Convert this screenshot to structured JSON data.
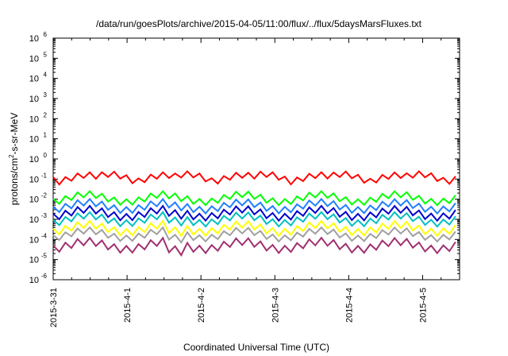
{
  "chart_data": {
    "type": "line",
    "title": "/data/run/goesPlots/archive/2015-04-05/11:00/flux/../flux/5daysMarsFluxes.txt",
    "xlabel": "Coordinated Universal Time (UTC)",
    "ylabel": {
      "pre": "protons/cm",
      "sup": "2",
      "post": "-s-sr-MeV"
    },
    "y_scale": "log",
    "ylim_exp": [
      -6,
      6
    ],
    "xlim_days": [
      0,
      5.5
    ],
    "x_ticks": [
      "2015-3-31",
      "2015-4-1",
      "2015-4-2",
      "2015-4-3",
      "2015-4-4",
      "2015-4-5"
    ],
    "y_ticks": [
      {
        "base": "10",
        "exp": "-6"
      },
      {
        "base": "10",
        "exp": "-5"
      },
      {
        "base": "10",
        "exp": "-4"
      },
      {
        "base": "10",
        "exp": "-3"
      },
      {
        "base": "10",
        "exp": "-2"
      },
      {
        "base": "10",
        "exp": "-1"
      },
      {
        "base": "10",
        "exp": "0"
      },
      {
        "base": "10",
        "exp": "1"
      },
      {
        "base": "10",
        "exp": "2"
      },
      {
        "base": "10",
        "exp": "3"
      },
      {
        "base": "10",
        "exp": "4"
      },
      {
        "base": "10",
        "exp": "5"
      },
      {
        "base": "10",
        "exp": "6"
      }
    ],
    "grid": false,
    "series": [
      {
        "color": "#ff0000",
        "base": -1.0,
        "sawtooth": 0.28
      },
      {
        "color": "#00ff00",
        "base": -1.95,
        "sawtooth": 0.3
      },
      {
        "color": "#2080ff",
        "base": -2.35,
        "sawtooth": 0.32
      },
      {
        "color": "#0000cc",
        "base": -2.7,
        "sawtooth": 0.34
      },
      {
        "color": "#00c0c0",
        "base": -3.0,
        "sawtooth": 0.32
      },
      {
        "color": "#ffff00",
        "base": -3.45,
        "sawtooth": 0.34
      },
      {
        "color": "#a0a0a0",
        "base": -3.75,
        "sawtooth": 0.3
      },
      {
        "color": "#a03070",
        "base": -4.3,
        "sawtooth": 0.36
      }
    ]
  }
}
